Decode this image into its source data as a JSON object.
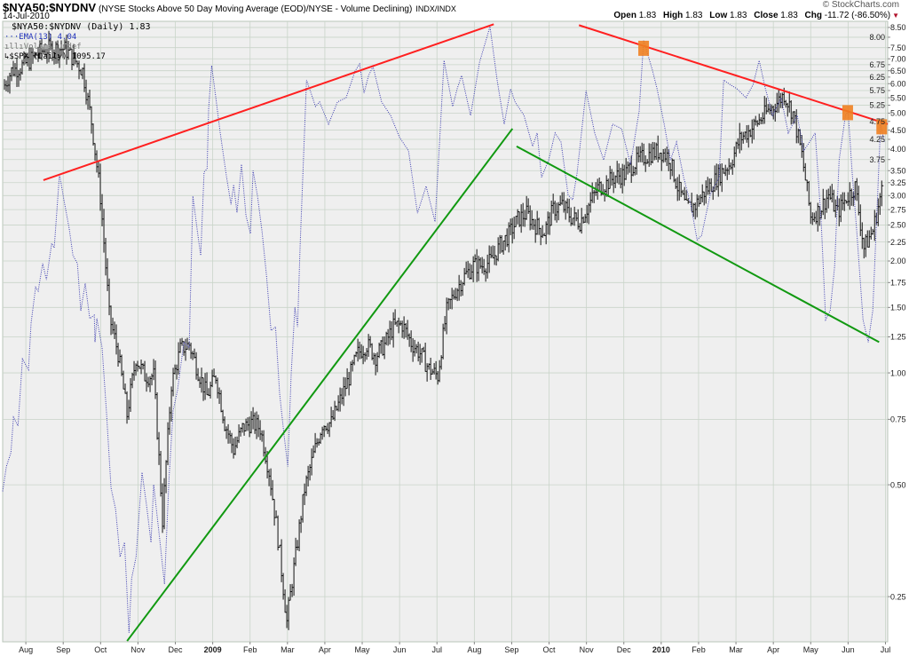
{
  "header": {
    "symbol": "$NYA50:$NYDNV",
    "description": "(NYSE Stocks Above 50 Day Moving Average (EOD)/NYSE - Volume Declining)",
    "exchange": "INDX/INDX",
    "date": "14-Jul-2010",
    "copyright": "© StockCharts.com",
    "open_label": "Open",
    "open": "1.83",
    "high_label": "High",
    "high": "1.83",
    "low_label": "Low",
    "low": "1.83",
    "close_label": "Close",
    "close": "1.83",
    "chg_label": "Chg",
    "chg": "-11.72 (-86.50%)",
    "chg_icon": "down-triangle-icon"
  },
  "legend": {
    "main": "$NYA50:$NYDNV (Daily) 1.83",
    "ema": "EMA(13) 4.04",
    "volume": "Volume undef",
    "spx": "$SPX (Daily) 1095.17"
  },
  "colors": {
    "ema": "#3b3bb0",
    "spx": "#111111",
    "resistance": "#ff2020",
    "support": "#119911",
    "marker": "#f08020",
    "grid": "#c9d4c9",
    "plot_bg": "#efefef"
  },
  "chart_data": {
    "type": "line",
    "title": "$NYA50:$NYDNV",
    "x_unit": "months since Jul 1 2008",
    "xlim": [
      0.38,
      24.06
    ],
    "ylim": [
      0.189,
      8.83
    ],
    "y_scale": "log",
    "grid": true,
    "legend_position": "top-left",
    "x_ticks": [
      {
        "m": 1,
        "label": "Aug"
      },
      {
        "m": 2,
        "label": "Sep"
      },
      {
        "m": 3,
        "label": "Oct"
      },
      {
        "m": 4,
        "label": "Nov"
      },
      {
        "m": 5,
        "label": "Dec"
      },
      {
        "m": 6,
        "label": "2009",
        "bold": true
      },
      {
        "m": 7,
        "label": "Feb"
      },
      {
        "m": 8,
        "label": "Mar"
      },
      {
        "m": 9,
        "label": "Apr"
      },
      {
        "m": 10,
        "label": "May"
      },
      {
        "m": 11,
        "label": "Jun"
      },
      {
        "m": 12,
        "label": "Jul"
      },
      {
        "m": 13,
        "label": "Aug"
      },
      {
        "m": 14,
        "label": "Sep"
      },
      {
        "m": 15,
        "label": "Oct"
      },
      {
        "m": 16,
        "label": "Nov"
      },
      {
        "m": 17,
        "label": "Dec"
      },
      {
        "m": 18,
        "label": "2010",
        "bold": true
      },
      {
        "m": 19,
        "label": "Feb"
      },
      {
        "m": 20,
        "label": "Mar"
      },
      {
        "m": 21,
        "label": "Apr"
      },
      {
        "m": 22,
        "label": "May"
      },
      {
        "m": 23,
        "label": "Jun"
      },
      {
        "m": 24,
        "label": "Jul"
      }
    ],
    "y_ticks": [
      "8.50",
      "8.00",
      "7.50",
      "7.00",
      "6.75",
      "6.50",
      "6.25",
      "6.00",
      "5.75",
      "5.50",
      "5.25",
      "5.00",
      "4.75",
      "4.50",
      "4.25",
      "4.00",
      "3.75",
      "3.50",
      "3.25",
      "3.00",
      "2.75",
      "2.50",
      "2.25",
      "2.00",
      "1.75",
      "1.50",
      "1.25",
      "1.00",
      "0.75",
      "0.50",
      "0.25"
    ],
    "series": [
      {
        "name": "EMA(13)",
        "style": "dotted",
        "points": [
          [
            0.38,
            0.48
          ],
          [
            0.48,
            0.56
          ],
          [
            0.6,
            0.61
          ],
          [
            0.67,
            0.76
          ],
          [
            0.79,
            0.72
          ],
          [
            0.91,
            1.09
          ],
          [
            1.07,
            1.02
          ],
          [
            1.14,
            1.36
          ],
          [
            1.26,
            1.7
          ],
          [
            1.33,
            1.66
          ],
          [
            1.45,
            1.97
          ],
          [
            1.55,
            1.78
          ],
          [
            1.69,
            2.23
          ],
          [
            1.76,
            2.17
          ],
          [
            1.9,
            3.43
          ],
          [
            2.02,
            2.92
          ],
          [
            2.16,
            2.45
          ],
          [
            2.26,
            2.07
          ],
          [
            2.38,
            1.97
          ],
          [
            2.47,
            1.47
          ],
          [
            2.59,
            1.74
          ],
          [
            2.71,
            1.4
          ],
          [
            2.83,
            1.43
          ],
          [
            2.85,
            1.21
          ],
          [
            2.9,
            1.4
          ],
          [
            3.04,
            1.17
          ],
          [
            3.16,
            0.78
          ],
          [
            3.28,
            0.49
          ],
          [
            3.4,
            0.43
          ],
          [
            3.52,
            0.32
          ],
          [
            3.64,
            0.35
          ],
          [
            3.76,
            0.2
          ],
          [
            3.83,
            0.28
          ],
          [
            3.95,
            0.32
          ],
          [
            4.11,
            0.54
          ],
          [
            4.23,
            0.44
          ],
          [
            4.35,
            0.35
          ],
          [
            4.42,
            0.5
          ],
          [
            4.59,
            0.35
          ],
          [
            4.71,
            0.27
          ],
          [
            4.83,
            0.52
          ],
          [
            4.94,
            0.79
          ],
          [
            5.06,
            0.9
          ],
          [
            5.23,
            1.21
          ],
          [
            5.37,
            1.17
          ],
          [
            5.47,
            2.99
          ],
          [
            5.59,
            2.4
          ],
          [
            5.68,
            2.07
          ],
          [
            5.77,
            3.47
          ],
          [
            5.85,
            3.54
          ],
          [
            5.89,
            5.12
          ],
          [
            5.97,
            6.71
          ],
          [
            6.08,
            5.53
          ],
          [
            6.2,
            4.44
          ],
          [
            6.37,
            3.37
          ],
          [
            6.49,
            2.84
          ],
          [
            6.56,
            3.21
          ],
          [
            6.65,
            2.7
          ],
          [
            6.77,
            3.64
          ],
          [
            6.89,
            2.65
          ],
          [
            7.01,
            2.37
          ],
          [
            7.08,
            3.5
          ],
          [
            7.2,
            2.99
          ],
          [
            7.32,
            2.4
          ],
          [
            7.44,
            1.83
          ],
          [
            7.56,
            1.3
          ],
          [
            7.68,
            1.33
          ],
          [
            7.79,
            0.88
          ],
          [
            7.91,
            0.68
          ],
          [
            8.01,
            0.56
          ],
          [
            8.1,
            0.99
          ],
          [
            8.2,
            1.5
          ],
          [
            8.27,
            1.33
          ],
          [
            8.34,
            2.2
          ],
          [
            8.51,
            6.14
          ],
          [
            8.63,
            5.66
          ],
          [
            8.75,
            5.21
          ],
          [
            8.86,
            5.36
          ],
          [
            9.1,
            4.67
          ],
          [
            9.34,
            5.36
          ],
          [
            9.57,
            5.5
          ],
          [
            9.81,
            6.49
          ],
          [
            9.93,
            6.78
          ],
          [
            10.05,
            5.66
          ],
          [
            10.17,
            6.31
          ],
          [
            10.29,
            6.67
          ],
          [
            10.52,
            5.36
          ],
          [
            10.76,
            4.93
          ],
          [
            11.0,
            4.3
          ],
          [
            11.24,
            3.96
          ],
          [
            11.48,
            2.69
          ],
          [
            11.71,
            3.18
          ],
          [
            11.95,
            2.55
          ],
          [
            12.07,
            4.18
          ],
          [
            12.19,
            6.93
          ],
          [
            12.42,
            5.21
          ],
          [
            12.54,
            5.81
          ],
          [
            12.66,
            6.31
          ],
          [
            12.9,
            4.93
          ],
          [
            13.14,
            6.85
          ],
          [
            13.42,
            8.55
          ],
          [
            13.61,
            6.14
          ],
          [
            13.8,
            4.67
          ],
          [
            13.97,
            5.81
          ],
          [
            14.09,
            5.36
          ],
          [
            14.33,
            4.93
          ],
          [
            14.56,
            4.07
          ],
          [
            14.68,
            4.42
          ],
          [
            14.8,
            3.36
          ],
          [
            14.99,
            3.74
          ],
          [
            15.16,
            4.42
          ],
          [
            15.32,
            4.18
          ],
          [
            15.51,
            3.01
          ],
          [
            15.63,
            2.92
          ],
          [
            15.75,
            3.45
          ],
          [
            15.99,
            5.74
          ],
          [
            16.22,
            4.42
          ],
          [
            16.46,
            3.74
          ],
          [
            16.7,
            4.67
          ],
          [
            16.94,
            4.54
          ],
          [
            17.18,
            3.64
          ],
          [
            17.41,
            5.06
          ],
          [
            17.53,
            7.86
          ],
          [
            17.77,
            6.49
          ],
          [
            17.89,
            5.81
          ],
          [
            18.08,
            4.67
          ],
          [
            18.25,
            3.74
          ],
          [
            18.41,
            4.18
          ],
          [
            18.6,
            3.36
          ],
          [
            18.79,
            2.84
          ],
          [
            18.96,
            2.28
          ],
          [
            19.08,
            2.34
          ],
          [
            19.31,
            3.01
          ],
          [
            19.55,
            3.36
          ],
          [
            19.67,
            6.14
          ],
          [
            19.84,
            5.97
          ],
          [
            20.03,
            5.81
          ],
          [
            20.27,
            5.5
          ],
          [
            20.46,
            5.97
          ],
          [
            20.62,
            6.93
          ],
          [
            20.79,
            5.81
          ],
          [
            20.98,
            4.93
          ],
          [
            21.21,
            5.5
          ],
          [
            21.4,
            4.42
          ],
          [
            21.64,
            4.93
          ],
          [
            21.81,
            3.96
          ],
          [
            21.97,
            4.18
          ],
          [
            22.12,
            4.42
          ],
          [
            22.28,
            2.55
          ],
          [
            22.4,
            1.39
          ],
          [
            22.52,
            1.47
          ],
          [
            22.64,
            1.93
          ],
          [
            22.76,
            3.74
          ],
          [
            22.93,
            4.93
          ],
          [
            23.0,
            5.06
          ],
          [
            23.11,
            3.45
          ],
          [
            23.23,
            2.41
          ],
          [
            23.4,
            1.39
          ],
          [
            23.54,
            1.21
          ],
          [
            23.66,
            1.47
          ],
          [
            23.76,
            2.55
          ],
          [
            23.87,
            4.67
          ],
          [
            23.97,
            4.18
          ]
        ]
      },
      {
        "name": "$SPX",
        "style": "bars",
        "ylim": [
          662,
          1331
        ],
        "start_m": 0.38,
        "end_m": 23.9,
        "closes": [
          1234,
          1259,
          1264,
          1273,
          1285,
          1290,
          1291,
          1290,
          1276,
          1259,
          1189,
          1093,
          955,
          916,
          855,
          911,
          893,
          893,
          760,
          884,
          920,
          925,
          898,
          873,
          893,
          847,
          822,
          842,
          847,
          842,
          802,
          744,
          677,
          730,
          786,
          817,
          846,
          847,
          869,
          891,
          916,
          925,
          913,
          925,
          944,
          946,
          927,
          916,
          900,
          893,
          961,
          983,
          999,
          1011,
          1011,
          1016,
          1034,
          1047,
          1065,
          1072,
          1058,
          1050,
          1077,
          1082,
          1068,
          1062,
          1082,
          1103,
          1109,
          1118,
          1120,
          1133,
          1141,
          1147,
          1150,
          1143,
          1105,
          1078,
          1082,
          1098,
          1110,
          1124,
          1135,
          1166,
          1176,
          1188,
          1201,
          1212,
          1226,
          1200,
          1145,
          1068,
          1076,
          1095,
          1073,
          1091,
          1105,
          1031,
          1052,
          1100
        ]
      }
    ],
    "trendlines": [
      {
        "name": "resistance-line-2008-2009",
        "color": "#ff2020",
        "from": [
          1.47,
          3.3
        ],
        "to": [
          13.52,
          8.67
        ]
      },
      {
        "name": "resistance-line-2009-2010",
        "color": "#ff2020",
        "from": [
          15.8,
          8.62
        ],
        "to": [
          24.06,
          4.67
        ]
      },
      {
        "name": "support-line-2008-2009",
        "color": "#119911",
        "from": [
          3.71,
          0.19
        ],
        "to": [
          14.02,
          4.54
        ]
      },
      {
        "name": "support-line-2009-2010",
        "color": "#119911",
        "from": [
          14.13,
          4.07
        ],
        "to": [
          23.83,
          1.21
        ]
      }
    ],
    "markers": [
      [
        17.53,
        7.45
      ],
      [
        22.99,
        5.0
      ],
      [
        23.9,
        4.58
      ]
    ]
  }
}
